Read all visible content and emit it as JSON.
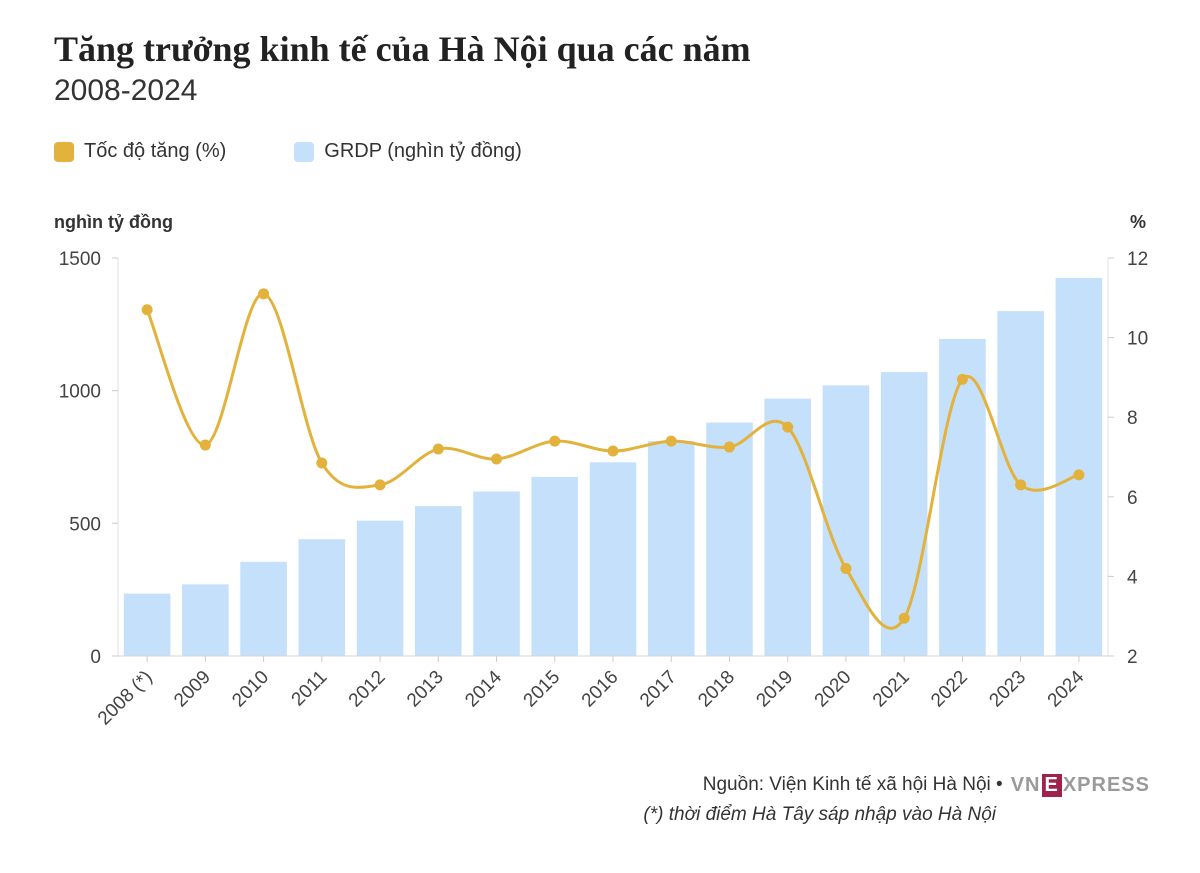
{
  "title": "Tăng trưởng kinh tế của Hà Nội qua các năm",
  "subtitle": "2008-2024",
  "colors": {
    "bar": "#c4e0fa",
    "line": "#e3b23c",
    "axis_text": "#444444"
  },
  "footer": {
    "source": "Nguồn: Viện Kinh tế xã hội Hà Nội •",
    "note": "(*) thời điểm Hà Tây sáp nhập vào Hà Nội",
    "logo": {
      "vn": "VN",
      "e": "E",
      "rest": "XPRESS"
    }
  },
  "chart_data": {
    "type": "bar",
    "categories": [
      "2008 (*)",
      "2009",
      "2010",
      "2011",
      "2012",
      "2013",
      "2014",
      "2015",
      "2016",
      "2017",
      "2018",
      "2019",
      "2020",
      "2021",
      "2022",
      "2023",
      "2024"
    ],
    "series": [
      {
        "name": "GRDP (nghìn tỷ đồng)",
        "type": "bar",
        "axis": "left",
        "values": [
          235,
          270,
          355,
          440,
          510,
          565,
          620,
          675,
          730,
          810,
          880,
          970,
          1020,
          1070,
          1195,
          1300,
          1425
        ]
      },
      {
        "name": "Tốc độ tăng (%)",
        "type": "line",
        "axis": "right",
        "values": [
          10.7,
          7.3,
          11.1,
          6.85,
          6.3,
          7.2,
          6.95,
          7.4,
          7.15,
          7.4,
          7.25,
          7.75,
          4.2,
          2.95,
          8.95,
          6.3,
          6.55
        ]
      }
    ],
    "y_left": {
      "label": "nghìn tỷ đồng",
      "ylim": [
        0,
        1500
      ],
      "ticks": [
        0,
        500,
        1000,
        1500
      ]
    },
    "y_right": {
      "label": "%",
      "ylim": [
        2,
        12
      ],
      "ticks": [
        2,
        4,
        6,
        8,
        10,
        12
      ]
    },
    "grid": false,
    "legend": "top-left"
  }
}
